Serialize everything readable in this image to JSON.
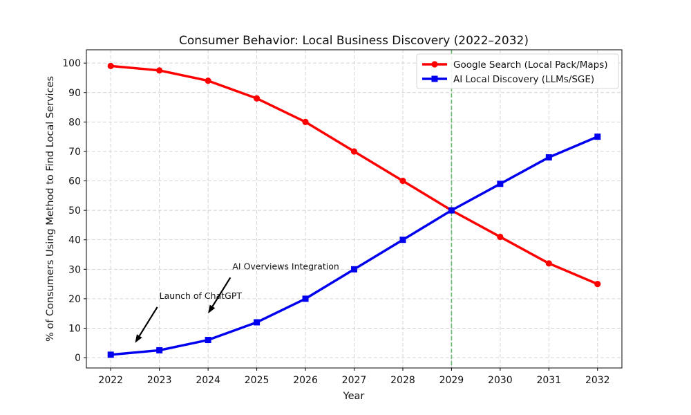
{
  "chart_data": {
    "type": "line",
    "title": "Consumer Behavior: Local Business Discovery (2022–2032)",
    "xlabel": "Year",
    "ylabel": "% of Consumers Using Method to Find Local Services",
    "x": [
      2022,
      2023,
      2024,
      2025,
      2026,
      2027,
      2028,
      2029,
      2030,
      2031,
      2032
    ],
    "xlim": [
      2021.5,
      2032.5
    ],
    "ylim": [
      -3.5,
      104.5
    ],
    "xticks": [
      "2022",
      "2023",
      "2024",
      "2025",
      "2026",
      "2027",
      "2028",
      "2029",
      "2030",
      "2031",
      "2032"
    ],
    "yticks": [
      "0",
      "10",
      "20",
      "30",
      "40",
      "50",
      "60",
      "70",
      "80",
      "90",
      "100"
    ],
    "grid": true,
    "legend_position": "top-right",
    "series": [
      {
        "name": "Google Search (Local Pack/Maps)",
        "color": "#ff0000",
        "marker": "circle",
        "values": [
          99,
          97.5,
          94,
          88,
          80,
          70,
          60,
          50,
          41,
          32,
          25
        ]
      },
      {
        "name": "AI Local Discovery (LLMs/SGE)",
        "color": "#0000ee",
        "marker": "square",
        "values": [
          1,
          2.5,
          6,
          12,
          20,
          30,
          40,
          50,
          59,
          68,
          75
        ]
      }
    ],
    "reference_lines": [
      {
        "type": "vertical",
        "x": 2029,
        "color": "#66bb6a",
        "style": "dashed"
      }
    ],
    "annotations": [
      {
        "text": "Launch of ChatGPT",
        "text_x": 2023,
        "text_y": 20,
        "arrow_x": 2022.5,
        "arrow_y": 5
      },
      {
        "text": "AI Overviews Integration",
        "text_x": 2024.5,
        "text_y": 30,
        "arrow_x": 2024,
        "arrow_y": 15
      }
    ]
  }
}
